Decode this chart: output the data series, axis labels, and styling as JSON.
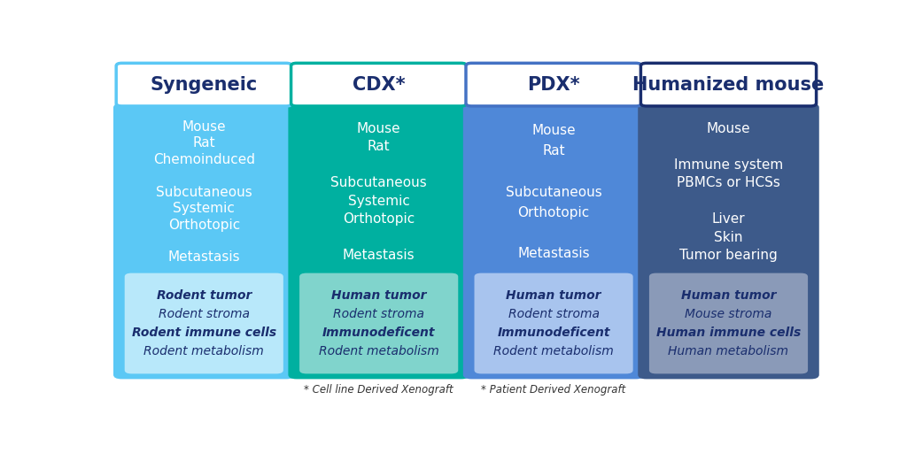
{
  "columns": [
    {
      "title": "Syngeneic",
      "title_color": "#1a2e6e",
      "title_border_color": "#5bc8f5",
      "title_bg": "#ffffff",
      "bg_color": "#5bc8f5",
      "body_text": [
        "Mouse",
        "Rat",
        "Chemoinduced",
        "",
        "Subcutaneous",
        "Systemic",
        "Orthotopic",
        "",
        "Metastasis"
      ],
      "body_text_color": "#ffffff",
      "box_bg": "#b8e8fa",
      "box_lines": [
        {
          "text": "Rodent tumor",
          "bold": true,
          "italic": true,
          "color": "#1a2e6e"
        },
        {
          "text": "Rodent stroma",
          "bold": false,
          "italic": true,
          "color": "#1a2e6e"
        },
        {
          "text": "Rodent immune cells",
          "bold": true,
          "italic": true,
          "color": "#1a2e6e"
        },
        {
          "text": "Rodent metabolism",
          "bold": false,
          "italic": true,
          "color": "#1a2e6e"
        }
      ],
      "footnote": null
    },
    {
      "title": "CDX*",
      "title_color": "#1a2e6e",
      "title_border_color": "#00b0a0",
      "title_bg": "#ffffff",
      "bg_color": "#00b0a0",
      "body_text": [
        "Mouse",
        "Rat",
        "",
        "Subcutaneous",
        "Systemic",
        "Orthotopic",
        "",
        "Metastasis"
      ],
      "body_text_color": "#ffffff",
      "box_bg": "#80d4cc",
      "box_lines": [
        {
          "text": "Human tumor",
          "bold": true,
          "italic": true,
          "color": "#1a2e6e"
        },
        {
          "text": "Rodent stroma",
          "bold": false,
          "italic": true,
          "color": "#1a2e6e"
        },
        {
          "text": "Immunodeficent",
          "bold": true,
          "italic": true,
          "color": "#1a2e6e"
        },
        {
          "text": "Rodent metabolism",
          "bold": false,
          "italic": true,
          "color": "#1a2e6e"
        }
      ],
      "footnote": "* Cell line Derived Xenograft"
    },
    {
      "title": "PDX*",
      "title_color": "#1a2e6e",
      "title_border_color": "#4472c4",
      "title_bg": "#ffffff",
      "bg_color": "#4f88d8",
      "body_text": [
        "Mouse",
        "Rat",
        "",
        "Subcutaneous",
        "Orthotopic",
        "",
        "Metastasis"
      ],
      "body_text_color": "#ffffff",
      "box_bg": "#a8c4ee",
      "box_lines": [
        {
          "text": "Human tumor",
          "bold": true,
          "italic": true,
          "color": "#1a2e6e"
        },
        {
          "text": "Rodent stroma",
          "bold": false,
          "italic": true,
          "color": "#1a2e6e"
        },
        {
          "text": "Immunodeficent",
          "bold": true,
          "italic": true,
          "color": "#1a2e6e"
        },
        {
          "text": "Rodent metabolism",
          "bold": false,
          "italic": true,
          "color": "#1a2e6e"
        }
      ],
      "footnote": "* Patient Derived Xenograft"
    },
    {
      "title": "Humanized mouse",
      "title_color": "#1a2e6e",
      "title_border_color": "#1a2e6e",
      "title_bg": "#ffffff",
      "bg_color": "#3d5a8a",
      "body_text": [
        "Mouse",
        "",
        "Immune system",
        "PBMCs or HCSs",
        "",
        "Liver",
        "Skin",
        "Tumor bearing"
      ],
      "body_text_color": "#ffffff",
      "box_bg": "#8a9ab8",
      "box_lines": [
        {
          "text": "Human tumor",
          "bold": true,
          "italic": true,
          "color": "#1a2e6e"
        },
        {
          "text": "Mouse stroma",
          "bold": false,
          "italic": true,
          "color": "#1a2e6e"
        },
        {
          "text": "Human immune cells",
          "bold": true,
          "italic": true,
          "color": "#1a2e6e"
        },
        {
          "text": "Human metabolism",
          "bold": false,
          "italic": true,
          "color": "#1a2e6e"
        }
      ],
      "footnote": null
    }
  ],
  "background_color": "#ffffff",
  "fig_width": 10.24,
  "fig_height": 5.21
}
